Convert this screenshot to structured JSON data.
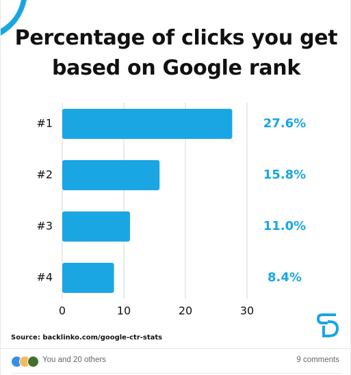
{
  "chart_data": {
    "type": "bar",
    "orientation": "horizontal",
    "title_lines": [
      "Percentage of clicks you get",
      "based on Google rank"
    ],
    "categories": [
      "#1",
      "#2",
      "#3",
      "#4"
    ],
    "values": [
      27.6,
      15.8,
      11.0,
      8.4
    ],
    "value_labels": [
      "27.6%",
      "15.8%",
      "11.0%",
      "8.4%"
    ],
    "xlim": [
      0,
      30
    ],
    "x_ticks": [
      "0",
      "10",
      "20",
      "30"
    ],
    "grid": "vertical",
    "legend": "none",
    "bar_color": "#1aa6e3",
    "label_color": "#1aa6e3",
    "gridline_color": "#dddddd"
  },
  "source": "Source: backlinko.com/google-ctr-stats",
  "brand_color": "#1aa6e3",
  "social": {
    "reaction_icons": [
      "like-icon",
      "celebrate-icon",
      "support-icon"
    ],
    "reactions_text": "You and 20 others",
    "comments_text": "9 comments"
  }
}
